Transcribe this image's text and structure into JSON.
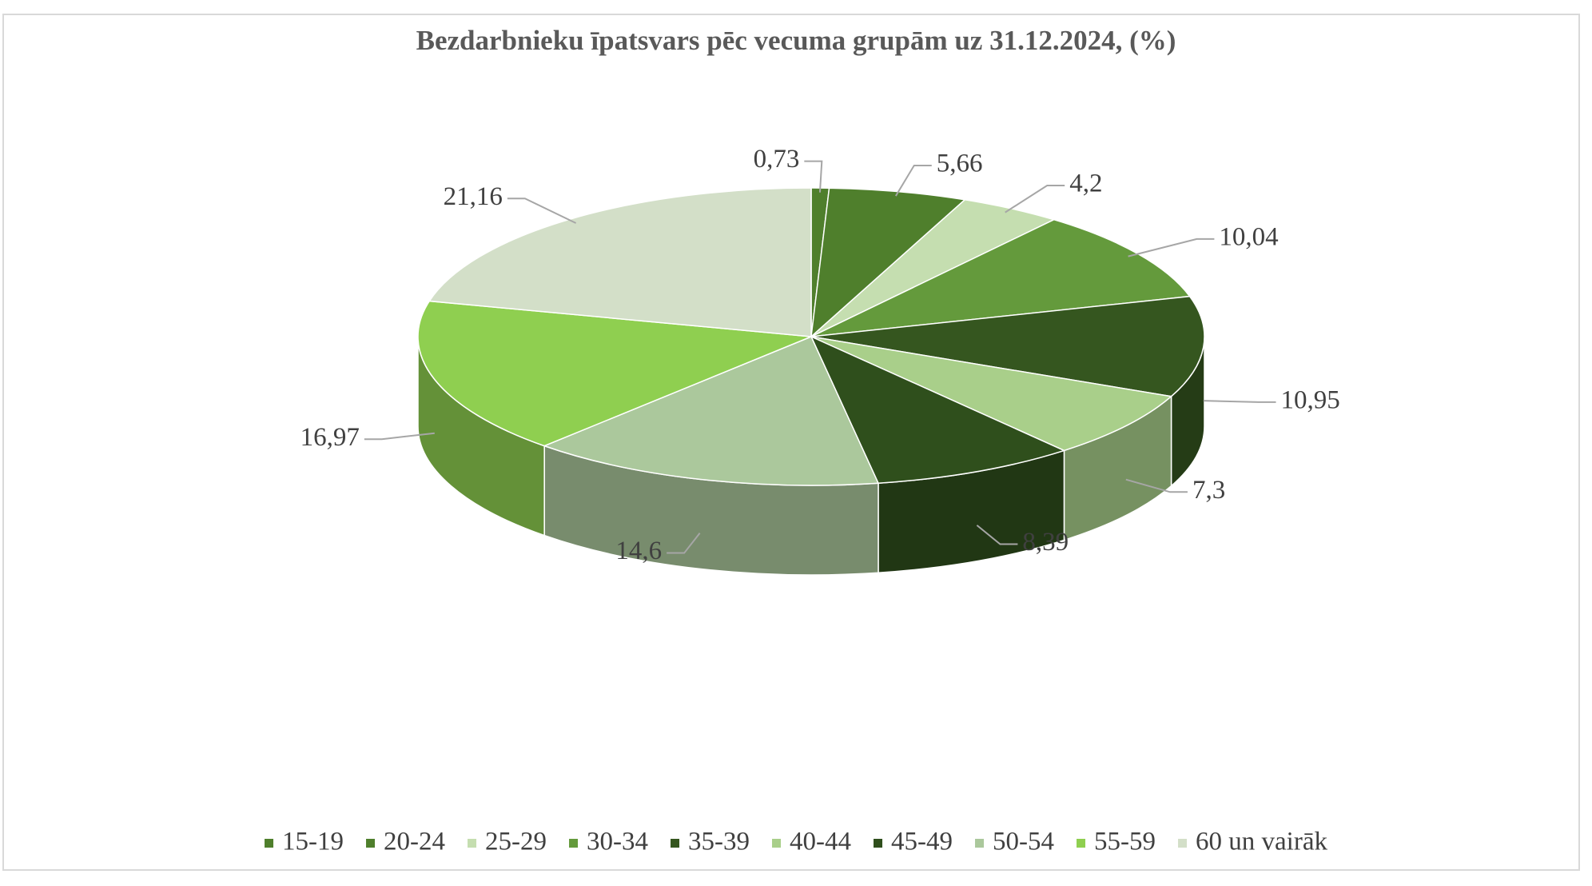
{
  "chart_data": {
    "type": "pie3d",
    "title": "Bezdarbnieku īpatsvars pēc vecuma grupām uz 31.12.2024, (%)",
    "categories": [
      "15-19",
      "20-24",
      "25-29",
      "30-34",
      "35-39",
      "40-44",
      "45-49",
      "50-54",
      "55-59",
      "60 un vairāk"
    ],
    "values": [
      0.73,
      5.66,
      4.2,
      10.04,
      10.95,
      7.3,
      8.39,
      14.6,
      16.97,
      21.16
    ],
    "value_labels": [
      "0,73",
      "5,66",
      "4,2",
      "10,04",
      "10,95",
      "7,3",
      "8,39",
      "14,6",
      "16,97",
      "21,16"
    ],
    "colors": [
      "#4f7f2c",
      "#4f7f2c",
      "#c5deb0",
      "#649a3c",
      "#35561f",
      "#a9cf8a",
      "#2f4f1c",
      "#abc89c",
      "#8fcf50",
      "#d3dfc8"
    ],
    "legend": "bottom"
  }
}
